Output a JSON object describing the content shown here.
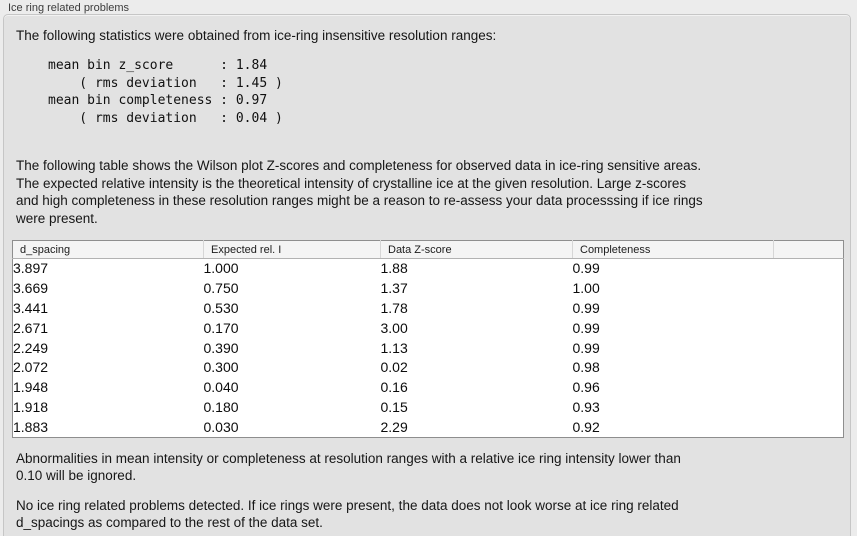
{
  "panel": {
    "title": "Ice ring related problems"
  },
  "intro": {
    "text": "The following statistics were obtained from ice-ring insensitive resolution ranges:"
  },
  "stats_block": {
    "lines": [
      "mean bin z_score      : 1.84",
      "    ( rms deviation   : 1.45 )",
      "mean bin completeness : 0.97",
      "    ( rms deviation   : 0.04 )"
    ]
  },
  "table_description": "The following table shows the Wilson plot Z-scores and completeness for observed data in ice-ring sensitive areas.\nThe expected relative intensity is the theoretical intensity of crystalline ice at the given resolution. Large z-scores\nand high completeness in these resolution ranges might be a reason to re-assess your data processsing if ice rings\nwere present.",
  "table": {
    "columns": [
      "d_spacing",
      "Expected rel. I",
      "Data Z-score",
      "Completeness",
      ""
    ],
    "rows": [
      [
        "3.897",
        "1.000",
        "1.88",
        "0.99"
      ],
      [
        "3.669",
        "0.750",
        "1.37",
        "1.00"
      ],
      [
        "3.441",
        "0.530",
        "1.78",
        "0.99"
      ],
      [
        "2.671",
        "0.170",
        "3.00",
        "0.99"
      ],
      [
        "2.249",
        "0.390",
        "1.13",
        "0.99"
      ],
      [
        "2.072",
        "0.300",
        "0.02",
        "0.98"
      ],
      [
        "1.948",
        "0.040",
        "0.16",
        "0.96"
      ],
      [
        "1.918",
        "0.180",
        "0.15",
        "0.93"
      ],
      [
        "1.883",
        "0.030",
        "2.29",
        "0.92"
      ]
    ]
  },
  "notes": {
    "ignore_note": "Abnormalities in mean intensity or completeness at resolution ranges with a relative ice ring intensity lower than\n0.10 will be ignored.",
    "conclusion": "No ice ring related problems detected. If ice rings were present, the data does not look worse at ice ring related\nd_spacings as compared to the rest of the data set."
  },
  "colors": {
    "panel_background": "#e2e2e2",
    "page_background": "#ececec",
    "table_background": "#ffffff",
    "table_header_background": "#f4f4f4",
    "text": "#1c1c1c"
  }
}
